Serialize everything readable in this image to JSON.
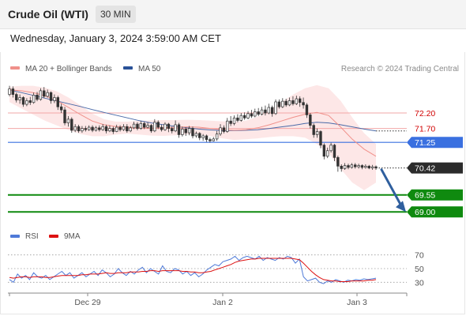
{
  "header": {
    "title": "Crude Oil (WTI)",
    "timeframe": "30 MIN",
    "datetime": "Wednesday, January 3, 2024 3:59:00 AM CET"
  },
  "legend": {
    "ma20": "MA 20 + Bollinger Bands",
    "ma50": "MA 50",
    "credit": "Research © 2024 Trading Central",
    "rsi": "RSI",
    "ma9": "9MA"
  },
  "colors": {
    "candle": "#333333",
    "ma20": "#f0908a",
    "band": "#fde3e3",
    "ma50": "#4a6aa8",
    "pivot": "#3a70e0",
    "support": "#0f8a0f",
    "resistance": "#f2a7a7",
    "resistance_text": "#d00000",
    "rsi": "#4f7ad8",
    "rsi_ma": "#dd1111",
    "arrow": "#2f5f9e"
  },
  "chart_data": [
    {
      "type": "candlestick",
      "title": "Crude Oil (WTI)",
      "timeframe": "30 MIN",
      "x_ticks": [
        "Dec 29",
        "Jan 2",
        "Jan 3"
      ],
      "ylim": [
        68.75,
        73.3
      ],
      "grid": false,
      "legend_position": "top-left",
      "price_levels": [
        {
          "value": 72.2,
          "label": "72.20",
          "kind": "resistance"
        },
        {
          "value": 71.7,
          "label": "71.70",
          "kind": "resistance"
        },
        {
          "value": 71.25,
          "label": "71.25",
          "kind": "pivot"
        },
        {
          "value": 70.42,
          "label": "70.42",
          "kind": "last"
        },
        {
          "value": 69.55,
          "label": "69.55",
          "kind": "support"
        },
        {
          "value": 69.0,
          "label": "69.00",
          "kind": "support"
        }
      ],
      "forecast": {
        "from": 70.42,
        "to": 69.0,
        "direction": "down"
      },
      "series": [
        {
          "name": "MA 20 + Bollinger Bands",
          "values": [
            72.95,
            72.92,
            72.86,
            72.76,
            72.6,
            72.38,
            72.15,
            71.94,
            71.82,
            71.76,
            71.74,
            71.72,
            71.71,
            71.72,
            71.74,
            71.75,
            71.74,
            71.7,
            71.66,
            71.64,
            71.66,
            71.72,
            71.82,
            71.94,
            72.06,
            72.16,
            72.22,
            72.12,
            71.75,
            71.35,
            71.03,
            70.8
          ]
        },
        {
          "name": "MA 50",
          "values": [
            72.95,
            72.86,
            72.77,
            72.68,
            72.59,
            72.5,
            72.41,
            72.31,
            72.22,
            72.13,
            72.04,
            71.95,
            71.88,
            71.82,
            71.77,
            71.72,
            71.68,
            71.65,
            71.63,
            71.63,
            71.64,
            71.66,
            71.7,
            71.75,
            71.8,
            71.86,
            71.9,
            71.88,
            71.82,
            71.75,
            71.68,
            71.62
          ]
        },
        {
          "name": "Bollinger upper",
          "values": [
            73.05,
            73.08,
            73.08,
            73.02,
            72.9,
            72.7,
            72.45,
            72.18,
            72.0,
            71.92,
            71.92,
            71.95,
            71.96,
            71.97,
            71.97,
            71.98,
            71.97,
            71.95,
            71.93,
            71.92,
            71.95,
            72.08,
            72.3,
            72.55,
            72.8,
            73.0,
            73.1,
            73.0,
            72.6,
            72.05,
            71.55,
            71.2
          ]
        },
        {
          "name": "Bollinger lower",
          "values": [
            72.55,
            72.35,
            72.15,
            71.95,
            71.8,
            71.65,
            71.52,
            71.45,
            71.45,
            71.5,
            71.53,
            71.5,
            71.47,
            71.46,
            71.48,
            71.5,
            71.5,
            71.45,
            71.38,
            71.33,
            71.35,
            71.38,
            71.42,
            71.45,
            71.45,
            71.4,
            71.2,
            70.9,
            70.4,
            69.95,
            69.7,
            69.95
          ]
        }
      ],
      "candles": [
        [
          72.8,
          72.98,
          73.08,
          72.74
        ],
        [
          72.98,
          72.8,
          73.06,
          72.7
        ],
        [
          72.8,
          72.62,
          72.86,
          72.54
        ],
        [
          72.62,
          72.7,
          72.8,
          72.5
        ],
        [
          72.7,
          72.48,
          72.74,
          72.4
        ],
        [
          72.48,
          72.6,
          72.68,
          72.42
        ],
        [
          72.6,
          72.54,
          72.72,
          72.46
        ],
        [
          72.54,
          72.78,
          72.86,
          72.5
        ],
        [
          72.78,
          72.64,
          72.88,
          72.58
        ],
        [
          72.64,
          72.92,
          73.0,
          72.6
        ],
        [
          72.92,
          72.74,
          73.04,
          72.68
        ],
        [
          72.74,
          72.86,
          72.96,
          72.7
        ],
        [
          72.86,
          72.6,
          72.9,
          72.5
        ],
        [
          72.6,
          72.7,
          72.8,
          72.52
        ],
        [
          72.7,
          72.4,
          72.76,
          72.3
        ],
        [
          72.4,
          72.3,
          72.5,
          72.2
        ],
        [
          72.3,
          71.88,
          72.4,
          71.8
        ],
        [
          71.88,
          72.0,
          72.1,
          71.76
        ],
        [
          72.0,
          71.64,
          72.06,
          71.56
        ],
        [
          71.64,
          71.76,
          71.84,
          71.58
        ],
        [
          71.76,
          71.62,
          71.82,
          71.56
        ],
        [
          71.62,
          71.7,
          71.78,
          71.56
        ],
        [
          71.7,
          71.66,
          71.78,
          71.6
        ],
        [
          71.66,
          71.74,
          71.8,
          71.62
        ],
        [
          71.74,
          71.64,
          71.8,
          71.58
        ],
        [
          71.64,
          71.72,
          71.78,
          71.6
        ],
        [
          71.72,
          71.66,
          71.8,
          71.6
        ],
        [
          71.66,
          71.76,
          71.84,
          71.62
        ],
        [
          71.76,
          71.62,
          71.82,
          71.54
        ],
        [
          71.62,
          71.7,
          71.8,
          71.58
        ],
        [
          71.7,
          71.6,
          71.76,
          71.52
        ],
        [
          71.6,
          71.74,
          71.82,
          71.58
        ],
        [
          71.74,
          71.66,
          71.8,
          71.6
        ],
        [
          71.66,
          71.76,
          71.84,
          71.62
        ],
        [
          71.76,
          71.62,
          71.84,
          71.56
        ],
        [
          71.62,
          71.72,
          71.78,
          71.58
        ],
        [
          71.72,
          71.84,
          71.92,
          71.68
        ],
        [
          71.84,
          71.7,
          71.9,
          71.64
        ],
        [
          71.7,
          71.86,
          71.94,
          71.66
        ],
        [
          71.86,
          71.74,
          71.92,
          71.68
        ],
        [
          71.74,
          71.8,
          71.9,
          71.7
        ],
        [
          71.8,
          71.62,
          71.84,
          71.56
        ],
        [
          71.62,
          71.9,
          72.0,
          71.58
        ],
        [
          71.9,
          71.74,
          71.96,
          71.68
        ],
        [
          71.74,
          71.66,
          71.82,
          71.6
        ],
        [
          71.66,
          71.84,
          71.9,
          71.62
        ],
        [
          71.84,
          71.7,
          71.88,
          71.58
        ],
        [
          71.7,
          71.62,
          71.76,
          71.54
        ],
        [
          71.62,
          71.82,
          71.96,
          71.58
        ],
        [
          71.82,
          71.5,
          71.88,
          71.4
        ],
        [
          71.5,
          71.68,
          71.76,
          71.44
        ],
        [
          71.68,
          71.56,
          71.74,
          71.46
        ],
        [
          71.56,
          71.7,
          71.78,
          71.48
        ],
        [
          71.7,
          71.46,
          71.76,
          71.38
        ],
        [
          71.46,
          71.54,
          71.6,
          71.4
        ],
        [
          71.54,
          71.4,
          71.58,
          71.32
        ],
        [
          71.4,
          71.46,
          71.52,
          71.3
        ],
        [
          71.46,
          71.34,
          71.5,
          71.26
        ],
        [
          71.34,
          71.3,
          71.4,
          71.24
        ],
        [
          71.3,
          71.36,
          71.42,
          71.28
        ],
        [
          71.36,
          71.52,
          71.62,
          71.3
        ],
        [
          71.52,
          71.72,
          71.84,
          71.46
        ],
        [
          71.72,
          71.6,
          71.8,
          71.54
        ],
        [
          71.6,
          71.94,
          72.04,
          71.56
        ],
        [
          71.94,
          71.86,
          72.1,
          71.78
        ],
        [
          71.86,
          72.04,
          72.12,
          71.8
        ],
        [
          72.04,
          71.96,
          72.16,
          71.9
        ],
        [
          71.96,
          72.12,
          72.2,
          71.92
        ],
        [
          72.12,
          72.04,
          72.22,
          71.98
        ],
        [
          72.04,
          72.18,
          72.26,
          72.0
        ],
        [
          72.18,
          72.1,
          72.3,
          72.04
        ],
        [
          72.1,
          72.24,
          72.34,
          72.06
        ],
        [
          72.24,
          72.16,
          72.36,
          72.1
        ],
        [
          72.16,
          72.3,
          72.4,
          72.12
        ],
        [
          72.3,
          72.2,
          72.44,
          72.12
        ],
        [
          72.2,
          72.38,
          72.5,
          72.16
        ],
        [
          72.38,
          72.18,
          72.44,
          72.08
        ],
        [
          72.18,
          72.56,
          72.64,
          72.14
        ],
        [
          72.56,
          72.4,
          72.64,
          72.34
        ],
        [
          72.4,
          72.58,
          72.68,
          72.36
        ],
        [
          72.58,
          72.46,
          72.66,
          72.4
        ],
        [
          72.46,
          72.6,
          72.7,
          72.42
        ],
        [
          72.6,
          72.5,
          72.74,
          72.44
        ],
        [
          72.5,
          72.66,
          72.76,
          72.46
        ],
        [
          72.66,
          72.54,
          72.74,
          72.4
        ],
        [
          72.54,
          72.46,
          72.7,
          72.34
        ],
        [
          72.46,
          72.14,
          72.52,
          72.04
        ],
        [
          72.14,
          71.8,
          72.2,
          71.7
        ],
        [
          71.8,
          71.5,
          71.86,
          71.4
        ],
        [
          71.5,
          71.6,
          71.7,
          71.4
        ],
        [
          71.6,
          71.16,
          71.64,
          71.06
        ],
        [
          71.16,
          70.8,
          71.22,
          70.7
        ],
        [
          70.8,
          70.98,
          71.08,
          70.74
        ],
        [
          70.98,
          71.16,
          71.24,
          70.92
        ],
        [
          71.16,
          70.76,
          71.2,
          70.64
        ],
        [
          70.76,
          70.48,
          70.82,
          70.3
        ],
        [
          70.48,
          70.4,
          70.54,
          70.3
        ],
        [
          70.4,
          70.5,
          70.58,
          70.36
        ],
        [
          70.5,
          70.44,
          70.56,
          70.38
        ],
        [
          70.44,
          70.52,
          70.58,
          70.4
        ],
        [
          70.52,
          70.46,
          70.58,
          70.4
        ],
        [
          70.46,
          70.5,
          70.56,
          70.4
        ],
        [
          70.5,
          70.44,
          70.54,
          70.38
        ],
        [
          70.44,
          70.48,
          70.54,
          70.4
        ],
        [
          70.48,
          70.42,
          70.52,
          70.38
        ],
        [
          70.42,
          70.46,
          70.52,
          70.36
        ],
        [
          70.46,
          70.42,
          70.5,
          70.36
        ]
      ]
    },
    {
      "type": "line",
      "title": "RSI",
      "x_ticks": [
        "Dec 29",
        "Jan 2",
        "Jan 3"
      ],
      "ylim": [
        20,
        80
      ],
      "y_ticks": [
        70,
        50,
        30
      ],
      "legend_position": "top-left",
      "series": [
        {
          "name": "RSI",
          "values": [
            34,
            30,
            42,
            36,
            40,
            34,
            44,
            38,
            36,
            40,
            34,
            38,
            42,
            46,
            40,
            44,
            36,
            40,
            44,
            38,
            42,
            46,
            40,
            48,
            44,
            38,
            42,
            50,
            44,
            40,
            46,
            42,
            48,
            52,
            44,
            50,
            46,
            42,
            54,
            46,
            44,
            50,
            48,
            42,
            46,
            40,
            44,
            38,
            42,
            48,
            52,
            56,
            54,
            60,
            62,
            64,
            68,
            62,
            66,
            68,
            66,
            64,
            68,
            62,
            66,
            64,
            62,
            66,
            64,
            68,
            66,
            58,
            64,
            38,
            32,
            34,
            36,
            30,
            28,
            32,
            30,
            34,
            32,
            30,
            33,
            32,
            34,
            33,
            35,
            34,
            35,
            36
          ]
        },
        {
          "name": "9MA",
          "values": [
            37,
            36,
            37,
            38,
            38,
            37,
            38,
            38,
            38,
            37,
            37,
            38,
            39,
            40,
            40,
            40,
            40,
            40,
            41,
            41,
            42,
            42,
            42,
            43,
            44,
            43,
            43,
            44,
            44,
            44,
            45,
            45,
            45,
            46,
            46,
            47,
            47,
            46,
            47,
            47,
            47,
            47,
            47,
            46,
            46,
            45,
            45,
            44,
            44,
            45,
            46,
            48,
            50,
            52,
            54,
            56,
            59,
            61,
            62,
            63,
            64,
            64,
            65,
            65,
            65,
            65,
            65,
            65,
            65,
            65,
            65,
            64,
            63,
            58,
            52,
            46,
            41,
            37,
            34,
            33,
            32,
            32,
            31,
            31,
            31,
            32,
            32,
            32,
            32,
            33,
            33,
            34
          ]
        }
      ]
    }
  ]
}
